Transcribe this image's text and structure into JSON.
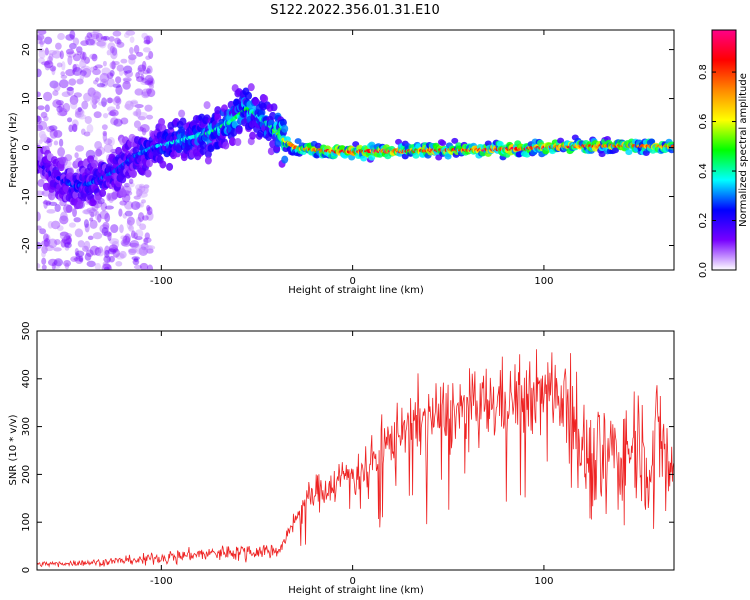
{
  "figure": {
    "title": "S122.2022.356.01.31.E10"
  },
  "chart_data": [
    {
      "type": "heatmap",
      "xlabel": "Height of straight line (km)",
      "ylabel": "Frequency (Hz)",
      "xlim": [
        -165,
        168
      ],
      "ylim": [
        -25,
        24
      ],
      "x_ticks": [
        -100,
        0,
        100
      ],
      "y_ticks": [
        -20,
        -10,
        0,
        10,
        20
      ],
      "colorbar": {
        "label": "Normalized spectral amplitude",
        "range": [
          0,
          0.97
        ],
        "ticks": [
          0.0,
          0.2,
          0.4,
          0.6,
          0.8
        ],
        "colormap": [
          "#ffffff",
          "#7700ff",
          "#0000ff",
          "#00ffff",
          "#00ff00",
          "#ffff00",
          "#ff8800",
          "#ff0000",
          "#ff0088"
        ]
      },
      "ridge": {
        "x": [
          -165,
          -155,
          -145,
          -135,
          -125,
          -115,
          -105,
          -95,
          -85,
          -75,
          -65,
          -55,
          -48,
          -42,
          -36,
          -30,
          -20,
          -10,
          0,
          10,
          20,
          30,
          40,
          50,
          60,
          70,
          80,
          90,
          100,
          110,
          120,
          130,
          140,
          150,
          160,
          168
        ],
        "y": [
          -3,
          -6,
          -8,
          -7,
          -5,
          -2,
          0,
          1,
          2,
          3,
          5,
          8,
          6,
          4,
          1.5,
          0,
          -0.5,
          -0.8,
          -0.8,
          -0.7,
          -0.8,
          -0.7,
          -0.6,
          -0.5,
          -0.5,
          -0.4,
          -0.3,
          -0.2,
          0,
          0.2,
          0.3,
          0.3,
          0.4,
          0.3,
          0.2,
          0.2
        ],
        "amplitude": [
          0.2,
          0.25,
          0.3,
          0.3,
          0.3,
          0.3,
          0.35,
          0.4,
          0.4,
          0.45,
          0.45,
          0.5,
          0.4,
          0.5,
          0.65,
          0.8,
          0.85,
          0.9,
          0.95,
          0.95,
          0.95,
          0.9,
          0.9,
          0.9,
          0.9,
          0.95,
          0.95,
          0.9,
          0.9,
          0.9,
          0.9,
          0.85,
          0.85,
          0.8,
          0.8,
          0.8
        ]
      }
    },
    {
      "type": "line",
      "xlabel": "Height of straight line (km)",
      "ylabel": "SNR (10 * v/v)",
      "xlim": [
        -165,
        168
      ],
      "ylim": [
        0,
        500
      ],
      "x_ticks": [
        -100,
        0,
        100
      ],
      "y_ticks": [
        0,
        100,
        200,
        300,
        400,
        500
      ],
      "color": "#ee2222",
      "series": [
        {
          "x": [
            -165,
            -150,
            -135,
            -120,
            -105,
            -90,
            -75,
            -60,
            -45,
            -38,
            -34,
            -30,
            -25,
            -20,
            -15,
            -10,
            -5,
            0,
            5,
            10,
            15,
            20,
            25,
            30,
            40,
            50,
            60,
            70,
            80,
            90,
            100,
            105,
            110,
            115,
            120,
            125,
            130,
            135,
            140,
            145,
            150,
            155,
            160,
            165,
            168
          ],
          "values": [
            12,
            14,
            16,
            20,
            25,
            30,
            35,
            40,
            40,
            45,
            70,
            110,
            140,
            160,
            170,
            180,
            195,
            205,
            215,
            225,
            245,
            270,
            300,
            310,
            320,
            330,
            335,
            345,
            355,
            360,
            370,
            380,
            385,
            350,
            250,
            220,
            240,
            250,
            230,
            260,
            280,
            210,
            300,
            220,
            200
          ]
        }
      ]
    }
  ]
}
